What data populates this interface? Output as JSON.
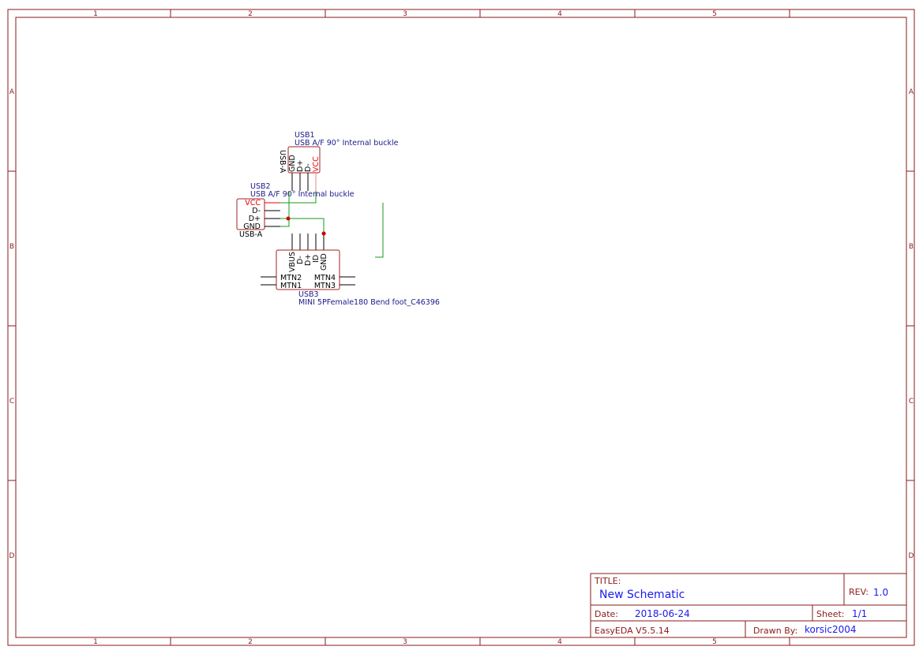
{
  "frame": {
    "columns": [
      "1",
      "2",
      "3",
      "4",
      "5"
    ],
    "rows": [
      "A",
      "B",
      "C",
      "D"
    ]
  },
  "components": {
    "usb1": {
      "designator": "USB1",
      "value": "USB A/F 90° Internal buckle",
      "footprint": "USB-A",
      "pins": [
        "GND",
        "D+",
        "D-",
        "VCC"
      ]
    },
    "usb2": {
      "designator": "USB2",
      "value": "USB A/F 90° Internal buckle",
      "footprint": "USB-A",
      "pins": [
        "VCC",
        "D-",
        "D+",
        "GND"
      ]
    },
    "usb3": {
      "designator": "USB3",
      "value": "MINI 5PFemale180 Bend foot_C46396",
      "pins": [
        "VBUS",
        "D-",
        "D+",
        "ID",
        "GND"
      ],
      "mtn_left": [
        "MTN2",
        "MTN1"
      ],
      "mtn_right": [
        "MTN4",
        "MTN3"
      ]
    }
  },
  "title_block": {
    "title_label": "TITLE:",
    "title": "New Schematic",
    "rev_label": "REV:",
    "rev": "1.0",
    "date_label": "Date:",
    "date": "2018-06-24",
    "sheet_label": "Sheet:",
    "sheet": "1/1",
    "software": "EasyEDA V5.5.14",
    "drawn_label": "Drawn By:",
    "drawn_by": "korsic2004"
  },
  "colors": {
    "frame": "#8b1a1a",
    "wire": "#1a9a1a",
    "power_pin": "#e00000",
    "designator": "#1a1a8a",
    "title_value": "#1a1aee"
  }
}
